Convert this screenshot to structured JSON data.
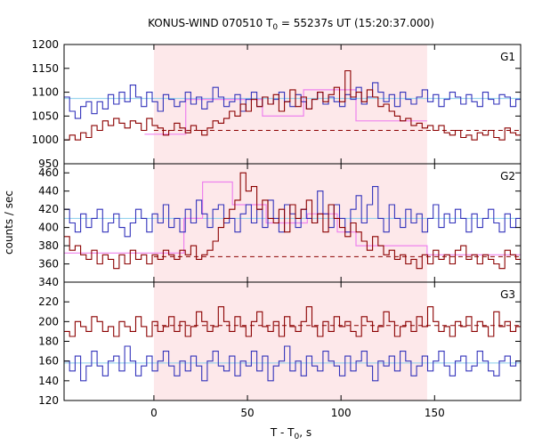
{
  "chart_data": {
    "type": "line",
    "title": "KONUS-WIND 070510 T",
    "title_sub": "0",
    "title_rest": " = 55237s UT (15:20:37.000)",
    "xlabel": "T - T",
    "xlabel_sub": "0",
    "xlabel_rest": ", s",
    "ylabel": "counts / sec",
    "xlim": [
      -48,
      196
    ],
    "x_ticks": [
      0,
      50,
      100,
      150
    ],
    "highlight_interval": [
      0,
      146
    ],
    "colors": {
      "series": "#8b0000",
      "background_level": "#87ceeb",
      "bayesian_blocks": "#ee82ee",
      "highlight": "#fde8ea",
      "other": "#3333bb"
    },
    "bin_width": 2.944,
    "panels": [
      {
        "name": "G1",
        "ylim": [
          950,
          1200
        ],
        "y_ticks": [
          950,
          1000,
          1050,
          1100,
          1150,
          1200
        ],
        "series": [
          {
            "color_key": "other",
            "start": -48,
            "values": [
              1090,
              1060,
              1045,
              1070,
              1080,
              1055,
              1080,
              1065,
              1095,
              1075,
              1100,
              1080,
              1115,
              1090,
              1070,
              1100,
              1080,
              1060,
              1095,
              1085,
              1070,
              1080,
              1100,
              1075,
              1090,
              1065,
              1080,
              1110,
              1090,
              1070,
              1080,
              1095,
              1060,
              1085,
              1100,
              1070,
              1090,
              1075,
              1085,
              1100,
              1080,
              1070,
              1095,
              1080,
              1065,
              1085,
              1100,
              1075,
              1090,
              1080,
              1070,
              1095,
              1085,
              1110,
              1075,
              1090,
              1120,
              1100,
              1080,
              1095,
              1070,
              1100,
              1085,
              1075,
              1090,
              1105,
              1080,
              1095,
              1070,
              1085,
              1100,
              1090,
              1075,
              1095,
              1080,
              1070,
              1100,
              1085,
              1075,
              1095,
              1090,
              1070,
              1085
            ]
          },
          {
            "color_key": "series",
            "start": -48,
            "values": [
              1000,
              1010,
              1000,
              1015,
              1005,
              1030,
              1020,
              1040,
              1030,
              1045,
              1035,
              1025,
              1040,
              1035,
              1020,
              1045,
              1030,
              1025,
              1010,
              1020,
              1035,
              1025,
              1015,
              1030,
              1020,
              1010,
              1025,
              1040,
              1035,
              1045,
              1060,
              1050,
              1075,
              1060,
              1085,
              1070,
              1090,
              1075,
              1095,
              1060,
              1080,
              1105,
              1070,
              1090,
              1065,
              1085,
              1100,
              1080,
              1095,
              1110,
              1080,
              1145,
              1090,
              1100,
              1080,
              1105,
              1090,
              1070,
              1075,
              1060,
              1050,
              1040,
              1045,
              1030,
              1035,
              1025,
              1030,
              1020,
              1030,
              1015,
              1010,
              1020,
              1005,
              1010,
              1000,
              1015,
              1010,
              1020,
              1005,
              1000,
              1025,
              1015,
              1010
            ]
          }
        ],
        "background_level": 1087,
        "dashed_level": 1020,
        "bayesian_blocks": [
          {
            "x1": -5,
            "x2": 17,
            "y": 1012
          },
          {
            "x1": 17,
            "x2": 58,
            "y": 1085
          },
          {
            "x1": 58,
            "x2": 80,
            "y": 1050
          },
          {
            "x1": 80,
            "x2": 108,
            "y": 1105
          },
          {
            "x1": 108,
            "x2": 146,
            "y": 1040
          }
        ]
      },
      {
        "name": "G2",
        "ylim": [
          340,
          470
        ],
        "y_ticks": [
          340,
          360,
          380,
          400,
          420,
          440,
          460
        ],
        "series": [
          {
            "color_key": "other",
            "start": -48,
            "values": [
              420,
              405,
              395,
              415,
              400,
              410,
              420,
              395,
              405,
              415,
              400,
              390,
              405,
              420,
              410,
              395,
              415,
              405,
              425,
              400,
              410,
              395,
              420,
              405,
              430,
              415,
              400,
              420,
              425,
              405,
              410,
              395,
              415,
              425,
              405,
              420,
              400,
              430,
              410,
              395,
              425,
              415,
              400,
              420,
              410,
              405,
              440,
              415,
              400,
              425,
              410,
              395,
              420,
              435,
              405,
              425,
              445,
              410,
              395,
              425,
              410,
              400,
              420,
              405,
              415,
              395,
              410,
              425,
              400,
              415,
              405,
              420,
              410,
              395,
              415,
              400,
              410,
              420,
              405,
              395,
              415,
              400,
              410
            ]
          },
          {
            "color_key": "series",
            "start": -48,
            "values": [
              390,
              375,
              380,
              370,
              365,
              375,
              360,
              370,
              365,
              355,
              370,
              360,
              375,
              365,
              370,
              360,
              370,
              365,
              375,
              370,
              365,
              375,
              370,
              380,
              365,
              370,
              375,
              385,
              400,
              410,
              420,
              430,
              460,
              440,
              445,
              420,
              430,
              410,
              405,
              420,
              395,
              425,
              410,
              420,
              430,
              405,
              415,
              395,
              425,
              410,
              400,
              390,
              405,
              395,
              385,
              375,
              390,
              380,
              370,
              375,
              365,
              370,
              360,
              365,
              355,
              370,
              360,
              375,
              365,
              370,
              360,
              375,
              380,
              365,
              370,
              360,
              370,
              365,
              360,
              355,
              375,
              370,
              365
            ]
          }
        ],
        "background_level": 410,
        "dashed_level": 368,
        "bayesian_blocks": [
          {
            "x1": -48,
            "x2": 16,
            "y": 372
          },
          {
            "x1": 16,
            "x2": 26,
            "y": 410
          },
          {
            "x1": 26,
            "x2": 42,
            "y": 450
          },
          {
            "x1": 42,
            "x2": 60,
            "y": 425
          },
          {
            "x1": 60,
            "x2": 82,
            "y": 405
          },
          {
            "x1": 82,
            "x2": 98,
            "y": 415
          },
          {
            "x1": 98,
            "x2": 108,
            "y": 395
          },
          {
            "x1": 108,
            "x2": 146,
            "y": 380
          },
          {
            "x1": 146,
            "x2": 196,
            "y": 370
          }
        ]
      },
      {
        "name": "G3",
        "ylim": [
          120,
          240
        ],
        "y_ticks": [
          120,
          140,
          160,
          180,
          200,
          220
        ],
        "series": [
          {
            "color_key": "other",
            "start": -48,
            "values": [
              160,
              150,
              165,
              140,
              155,
              170,
              155,
              145,
              160,
              165,
              150,
              175,
              160,
              145,
              155,
              165,
              150,
              160,
              170,
              155,
              145,
              160,
              150,
              165,
              155,
              140,
              160,
              170,
              155,
              150,
              165,
              145,
              160,
              155,
              170,
              150,
              165,
              140,
              155,
              160,
              175,
              150,
              160,
              145,
              165,
              155,
              150,
              170,
              160,
              155,
              145,
              165,
              150,
              160,
              170,
              155,
              140,
              160,
              155,
              165,
              150,
              170,
              160,
              145,
              155,
              165,
              150,
              160,
              170,
              155,
              145,
              160,
              165,
              150,
              155,
              170,
              160,
              150,
              145,
              160,
              165,
              155,
              160
            ]
          },
          {
            "color_key": "series",
            "start": -48,
            "values": [
              190,
              185,
              200,
              195,
              190,
              205,
              200,
              190,
              195,
              185,
              200,
              195,
              190,
              205,
              195,
              185,
              200,
              190,
              195,
              205,
              190,
              200,
              185,
              195,
              210,
              200,
              190,
              195,
              215,
              200,
              190,
              205,
              195,
              185,
              200,
              210,
              195,
              190,
              200,
              185,
              205,
              195,
              190,
              200,
              215,
              195,
              185,
              200,
              190,
              205,
              195,
              200,
              190,
              185,
              205,
              200,
              190,
              195,
              210,
              200,
              185,
              195,
              200,
              190,
              205,
              195,
              215,
              200,
              190,
              195,
              185,
              200,
              195,
              205,
              190,
              200,
              195,
              185,
              210,
              195,
              200,
              190,
              195
            ]
          }
        ],
        "background_level": 158,
        "dashed_level": 196,
        "bayesian_blocks": []
      }
    ]
  }
}
